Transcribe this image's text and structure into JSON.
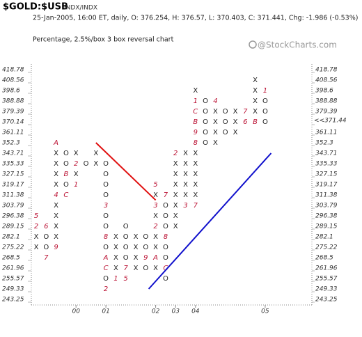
{
  "chart_data": {
    "type": "point-and-figure",
    "title": "$GOLD:$USB",
    "exchange": "INDX/INDX",
    "subtitle": "25-Jan-2005, 16:00 ET, daily, O: 376.254, H: 376.57, L: 370.403, C: 371.441, Chg: -1.986 (-0.53%)",
    "chart_kind": "Percentage, 2.5%/box 3 box reversal chart",
    "watermark": "@StockCharts.com",
    "log_scale": true,
    "ylim": [
      243.25,
      418.78
    ],
    "yticks": [
      418.78,
      408.56,
      398.6,
      388.88,
      379.39,
      370.14,
      361.11,
      352.3,
      343.71,
      335.33,
      327.15,
      319.17,
      311.38,
      303.79,
      296.38,
      289.15,
      282.1,
      275.22,
      268.5,
      261.96,
      255.57,
      249.33,
      243.25
    ],
    "current_box": 370.14,
    "last_price": {
      "value": 371.44,
      "label": "<<371.44"
    },
    "highlight_color": "#cc2222",
    "box_color": "#222222",
    "month_color": "#bb1133",
    "years": [
      {
        "label": "00",
        "column": 4
      },
      {
        "label": "01",
        "column": 7
      },
      {
        "label": "02",
        "column": 12
      },
      {
        "label": "03",
        "column": 14
      },
      {
        "label": "04",
        "column": 16
      },
      {
        "label": "05",
        "column": 23
      }
    ],
    "columns": [
      [
        [
          296.38,
          "5"
        ],
        [
          289.15,
          "2"
        ],
        [
          282.1,
          "X"
        ],
        [
          275.22,
          "X"
        ]
      ],
      [
        [
          289.15,
          "6"
        ],
        [
          282.1,
          "O"
        ],
        [
          275.22,
          "O"
        ],
        [
          268.5,
          "7"
        ]
      ],
      [
        [
          352.3,
          "A"
        ],
        [
          343.71,
          "X"
        ],
        [
          335.33,
          "X"
        ],
        [
          327.15,
          "X"
        ],
        [
          319.17,
          "X"
        ],
        [
          311.38,
          "4"
        ],
        [
          303.79,
          "X"
        ],
        [
          296.38,
          "X"
        ],
        [
          289.15,
          "X"
        ],
        [
          282.1,
          "X"
        ],
        [
          275.22,
          "9"
        ]
      ],
      [
        [
          343.71,
          "O"
        ],
        [
          335.33,
          "O"
        ],
        [
          327.15,
          "B"
        ],
        [
          319.17,
          "O"
        ],
        [
          311.38,
          "C"
        ]
      ],
      [
        [
          343.71,
          "X"
        ],
        [
          335.33,
          "2"
        ],
        [
          327.15,
          "X"
        ],
        [
          319.17,
          "1"
        ]
      ],
      [
        [
          335.33,
          "O"
        ]
      ],
      [
        [
          343.71,
          "X"
        ],
        [
          335.33,
          "X"
        ]
      ],
      [
        [
          335.33,
          "O"
        ],
        [
          327.15,
          "O"
        ],
        [
          319.17,
          "O"
        ],
        [
          311.38,
          "O"
        ],
        [
          303.79,
          "3"
        ],
        [
          296.38,
          "O"
        ],
        [
          289.15,
          "O"
        ],
        [
          282.1,
          "8"
        ],
        [
          275.22,
          "O"
        ],
        [
          268.5,
          "A"
        ],
        [
          261.96,
          "C"
        ],
        [
          255.57,
          "O"
        ],
        [
          249.33,
          "2"
        ]
      ],
      [
        [
          282.1,
          "X"
        ],
        [
          275.22,
          "X"
        ],
        [
          268.5,
          "X"
        ],
        [
          261.96,
          "X"
        ],
        [
          255.57,
          "1"
        ]
      ],
      [
        [
          289.15,
          "O"
        ],
        [
          282.1,
          "O"
        ],
        [
          275.22,
          "O"
        ],
        [
          268.5,
          "O"
        ],
        [
          261.96,
          "7"
        ],
        [
          255.57,
          "5"
        ]
      ],
      [
        [
          282.1,
          "X"
        ],
        [
          275.22,
          "X"
        ],
        [
          268.5,
          "X"
        ],
        [
          261.96,
          "X"
        ]
      ],
      [
        [
          282.1,
          "O"
        ],
        [
          275.22,
          "O"
        ],
        [
          268.5,
          "9"
        ],
        [
          261.96,
          "O"
        ]
      ],
      [
        [
          319.17,
          "5"
        ],
        [
          311.38,
          "X"
        ],
        [
          303.79,
          "3"
        ],
        [
          296.38,
          "X"
        ],
        [
          289.15,
          "2"
        ],
        [
          282.1,
          "X"
        ],
        [
          275.22,
          "X"
        ],
        [
          268.5,
          "A"
        ],
        [
          261.96,
          "X"
        ]
      ],
      [
        [
          311.38,
          "7"
        ],
        [
          303.79,
          "O"
        ],
        [
          296.38,
          "O"
        ],
        [
          289.15,
          "O"
        ],
        [
          282.1,
          "8"
        ],
        [
          275.22,
          "O"
        ],
        [
          268.5,
          "O"
        ],
        [
          261.96,
          "C"
        ],
        [
          255.57,
          "O"
        ]
      ],
      [
        [
          343.71,
          "2"
        ],
        [
          335.33,
          "X"
        ],
        [
          327.15,
          "X"
        ],
        [
          319.17,
          "X"
        ],
        [
          311.38,
          "X"
        ],
        [
          303.79,
          "X"
        ],
        [
          296.38,
          "X"
        ],
        [
          289.15,
          "X"
        ]
      ],
      [
        [
          343.71,
          "X"
        ],
        [
          335.33,
          "X"
        ],
        [
          327.15,
          "X"
        ],
        [
          319.17,
          "X"
        ],
        [
          311.38,
          "X"
        ],
        [
          303.79,
          "3"
        ]
      ],
      [
        [
          398.6,
          "X"
        ],
        [
          388.88,
          "1"
        ],
        [
          379.39,
          "C"
        ],
        [
          370.14,
          "B"
        ],
        [
          361.11,
          "9"
        ],
        [
          352.3,
          "8"
        ],
        [
          343.71,
          "X"
        ],
        [
          335.33,
          "X"
        ],
        [
          327.15,
          "X"
        ],
        [
          319.17,
          "X"
        ],
        [
          311.38,
          "X"
        ],
        [
          303.79,
          "7"
        ]
      ],
      [
        [
          388.88,
          "O"
        ],
        [
          379.39,
          "O"
        ],
        [
          370.14,
          "O"
        ],
        [
          361.11,
          "O"
        ],
        [
          352.3,
          "O"
        ]
      ],
      [
        [
          388.88,
          "4"
        ],
        [
          379.39,
          "X"
        ],
        [
          370.14,
          "X"
        ],
        [
          361.11,
          "X"
        ],
        [
          352.3,
          "X"
        ]
      ],
      [
        [
          379.39,
          "O"
        ],
        [
          370.14,
          "O"
        ],
        [
          361.11,
          "O"
        ]
      ],
      [
        [
          379.39,
          "X"
        ],
        [
          370.14,
          "X"
        ],
        [
          361.11,
          "X"
        ]
      ],
      [
        [
          379.39,
          "7"
        ],
        [
          370.14,
          "6"
        ]
      ],
      [
        [
          408.56,
          "X"
        ],
        [
          398.6,
          "X"
        ],
        [
          388.88,
          "X"
        ],
        [
          379.39,
          "X"
        ],
        [
          370.14,
          "B"
        ]
      ],
      [
        [
          398.6,
          "1"
        ],
        [
          388.88,
          "O"
        ],
        [
          379.39,
          "O"
        ],
        [
          370.14,
          "O"
        ]
      ]
    ],
    "trendlines": [
      {
        "color": "#e01010",
        "from": [
          6,
          352.3
        ],
        "to": [
          12,
          307.6
        ]
      },
      {
        "color": "#1010cc",
        "from": [
          11.3,
          249.33
        ],
        "to": [
          23.6,
          343.71
        ]
      }
    ]
  }
}
